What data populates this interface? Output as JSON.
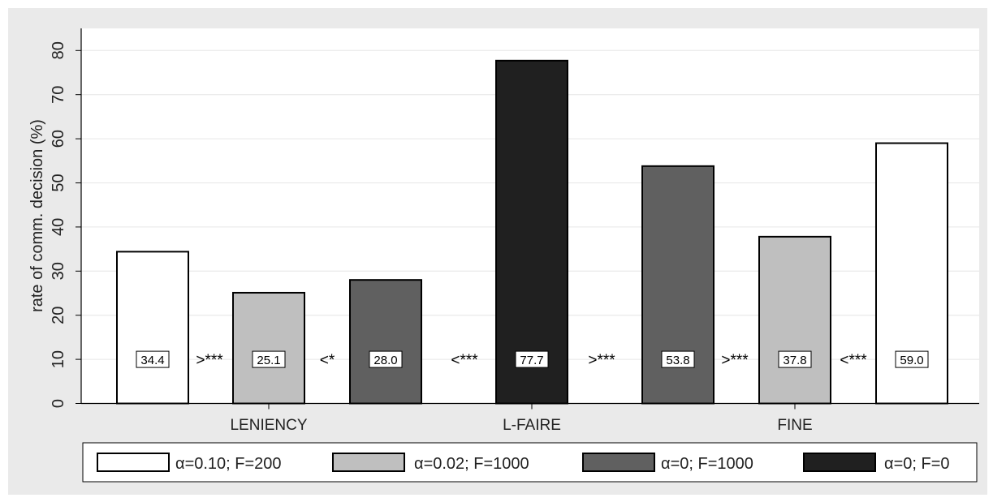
{
  "chart_data": {
    "type": "bar",
    "ylabel": "rate of comm. decision (%)",
    "xlabel": "",
    "ylim": [
      0,
      85
    ],
    "yticks": [
      0,
      10,
      20,
      30,
      40,
      50,
      60,
      70,
      80
    ],
    "grid": true,
    "legend_position": "bottom",
    "groups": [
      "LENIENCY",
      "L-FAIRE",
      "FINE"
    ],
    "series": [
      {
        "name": "α=0.10; F=200",
        "color": "#ffffff"
      },
      {
        "name": "α=0.02; F=1000",
        "color": "#bfbfbf"
      },
      {
        "name": "α=0; F=1000",
        "color": "#606060"
      },
      {
        "name": "α=0; F=0",
        "color": "#202020"
      }
    ],
    "bars": [
      {
        "group": "LENIENCY",
        "series": 0,
        "value": 34.4,
        "label": "34.4"
      },
      {
        "group": "LENIENCY",
        "series": 1,
        "value": 25.1,
        "label": "25.1"
      },
      {
        "group": "LENIENCY",
        "series": 2,
        "value": 28.0,
        "label": "28.0"
      },
      {
        "group": "L-FAIRE",
        "series": 3,
        "value": 77.7,
        "label": "77.7"
      },
      {
        "group": "FINE",
        "series": 2,
        "value": 53.8,
        "label": "53.8"
      },
      {
        "group": "FINE",
        "series": 1,
        "value": 37.8,
        "label": "37.8"
      },
      {
        "group": "FINE",
        "series": 0,
        "value": 59.0,
        "label": "59.0"
      }
    ],
    "comparisons": [
      ">***",
      "<*",
      "<***",
      ">***",
      ">***",
      "<***"
    ],
    "label_y_value": 10
  }
}
